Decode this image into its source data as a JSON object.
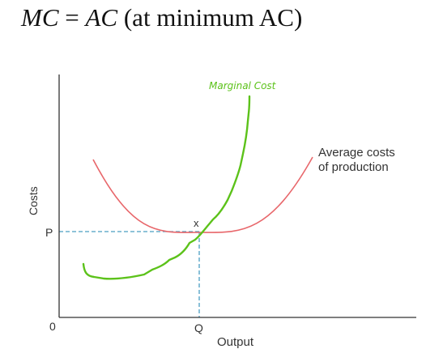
{
  "heading": {
    "lhs": "MC",
    "equals": "=",
    "rhs": "AC",
    "note": "(at minimum AC)"
  },
  "diagram": {
    "y_axis_label": "Costs",
    "x_axis_label": "Output",
    "origin_label": "0",
    "price_label": "P",
    "quantity_label": "Q",
    "min_point_marker": "x",
    "ac_curve_label_line1": "Average costs",
    "ac_curve_label_line2": "of production",
    "mc_curve_label": "Marginal Cost",
    "colors": {
      "ac_curve": "#e8676b",
      "mc_curve": "#5cc21a",
      "guides": "#4a9fc2",
      "axes": "#333333"
    }
  }
}
